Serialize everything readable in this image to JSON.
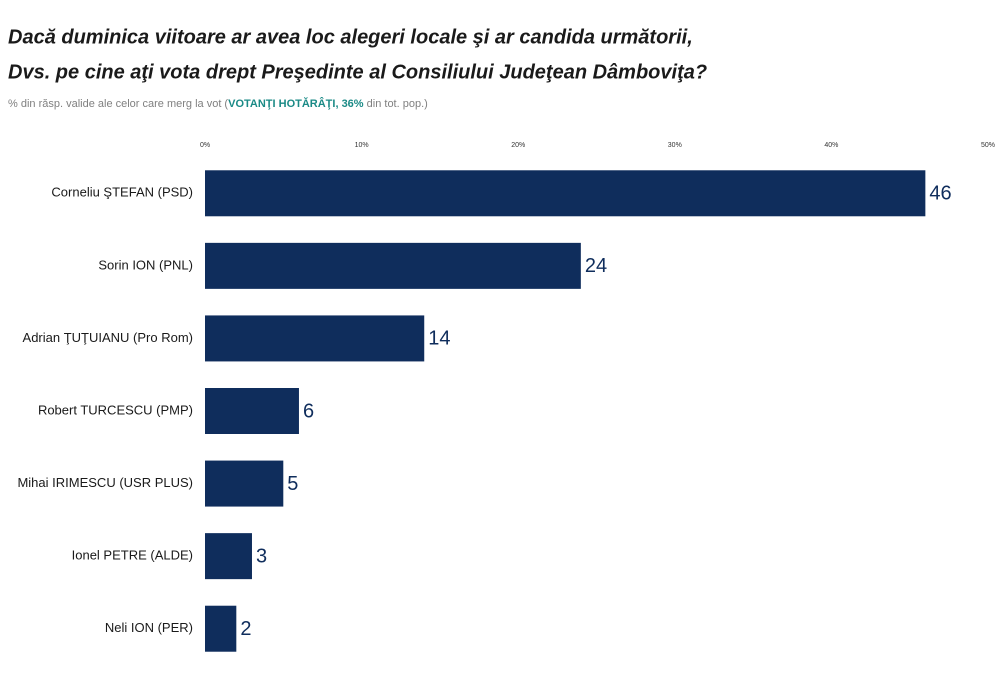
{
  "chart_data": {
    "type": "hbar",
    "title": [
      "Dacă duminica viitoare ar avea loc alegeri locale şi ar candida următorii,",
      "Dvs. pe cine aţi vota drept Preşedinte al Consiliului Judeţean Dâmboviţa?"
    ],
    "subtitle": [
      "% din răsp. valide ale celor care merg la vot (",
      "VOTANŢI HOTĂRÂŢI, 36%",
      " din tot. pop.)"
    ],
    "categories": [
      "Corneliu ŞTEFAN (PSD)",
      "Sorin ION (PNL)",
      "Adrian ŢUŢUIANU (Pro Rom)",
      "Robert TURCESCU (PMP)",
      "Mihai IRIMESCU (USR PLUS)",
      "Ionel PETRE (ALDE)",
      "Neli ION (PER)"
    ],
    "values": [
      46,
      24,
      14,
      6,
      5,
      3,
      2
    ],
    "color": "#0f2d5c",
    "xlim": [
      0,
      50
    ],
    "xticks": [
      {
        "value": 0,
        "label": "0%"
      },
      {
        "value": 10,
        "label": "10%"
      },
      {
        "value": 20,
        "label": "20%"
      },
      {
        "value": 30,
        "label": "30%"
      },
      {
        "value": 40,
        "label": "40%"
      },
      {
        "value": 50,
        "label": "50%"
      }
    ],
    "grid": false
  }
}
